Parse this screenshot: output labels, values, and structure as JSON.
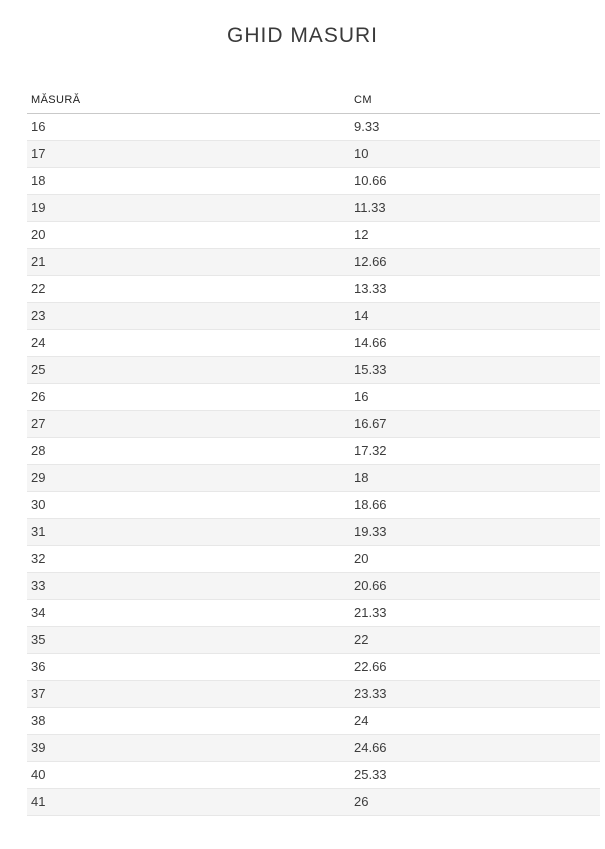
{
  "title": "GHID MASURI",
  "colors": {
    "title_color": "#3a3a3a",
    "header_color": "#222222",
    "cell_color": "#3c3c3c",
    "row_alt": "#f5f5f5",
    "row_border": "#e7e7e7",
    "header_border": "#c9c9c9",
    "page_bg": "#ffffff"
  },
  "table": {
    "columns": [
      "MĂSURĂ",
      "CM"
    ],
    "rows": [
      [
        "16",
        "9.33"
      ],
      [
        "17",
        "10"
      ],
      [
        "18",
        "10.66"
      ],
      [
        "19",
        "11.33"
      ],
      [
        "20",
        "12"
      ],
      [
        "21",
        "12.66"
      ],
      [
        "22",
        "13.33"
      ],
      [
        "23",
        "14"
      ],
      [
        "24",
        "14.66"
      ],
      [
        "25",
        "15.33"
      ],
      [
        "26",
        "16"
      ],
      [
        "27",
        "16.67"
      ],
      [
        "28",
        "17.32"
      ],
      [
        "29",
        "18"
      ],
      [
        "30",
        "18.66"
      ],
      [
        "31",
        "19.33"
      ],
      [
        "32",
        "20"
      ],
      [
        "33",
        "20.66"
      ],
      [
        "34",
        "21.33"
      ],
      [
        "35",
        "22"
      ],
      [
        "36",
        "22.66"
      ],
      [
        "37",
        "23.33"
      ],
      [
        "38",
        "24"
      ],
      [
        "39",
        "24.66"
      ],
      [
        "40",
        "25.33"
      ],
      [
        "41",
        "26"
      ]
    ]
  }
}
